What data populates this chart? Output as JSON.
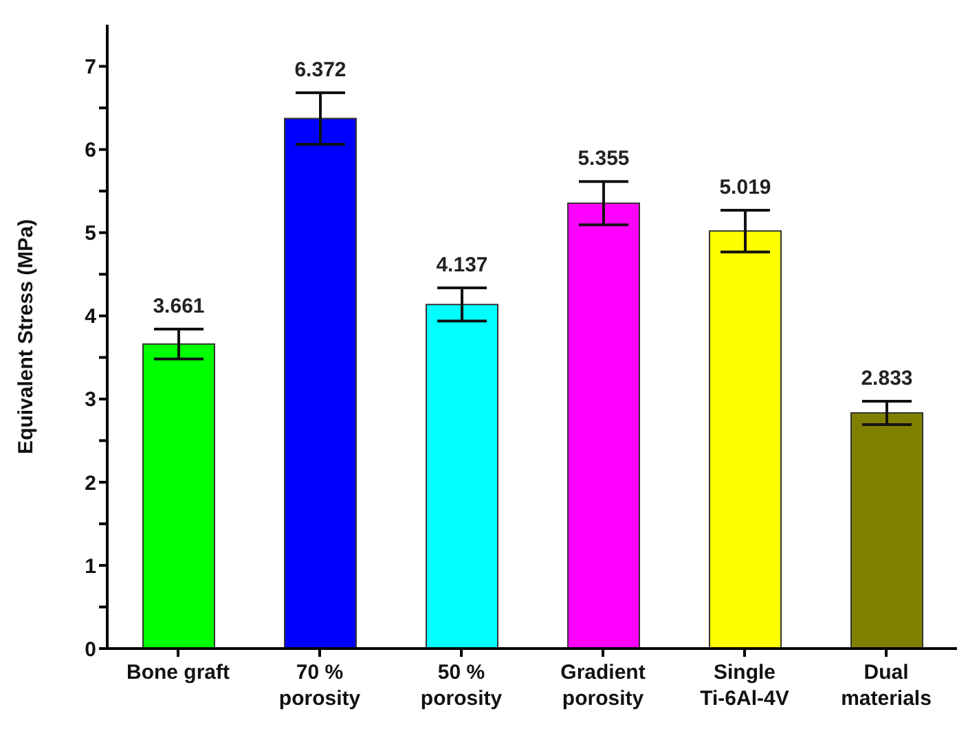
{
  "chart_data": {
    "type": "bar",
    "ylabel": "Equivalent Stress (MPa)",
    "categories": [
      "Bone graft",
      "70 %\nporosity",
      "50 %\nporosity",
      "Gradient\nporosity",
      "Single\nTi-6Al-4V",
      "Dual\nmaterials"
    ],
    "values": [
      3.661,
      6.372,
      4.137,
      5.355,
      5.019,
      2.833
    ],
    "colors": [
      "#00ff00",
      "#0000ff",
      "#00ffff",
      "#ff00ff",
      "#ffff00",
      "#808000"
    ],
    "errors": [
      0.18,
      0.31,
      0.2,
      0.26,
      0.25,
      0.14
    ],
    "data_labels": true,
    "ylim": [
      0,
      7.5
    ],
    "yticks": [
      0,
      {
        "value": 0.5,
        "label": null
      },
      1,
      {
        "value": 1.5,
        "label": null
      },
      2,
      {
        "value": 2.5,
        "label": null
      },
      3,
      {
        "value": 3.5,
        "label": null
      },
      4,
      {
        "value": 4.5,
        "label": null
      },
      5,
      {
        "value": 5.5,
        "label": null
      },
      6,
      {
        "value": 6.5,
        "label": null
      },
      7
    ],
    "grid": false,
    "legend": false
  }
}
